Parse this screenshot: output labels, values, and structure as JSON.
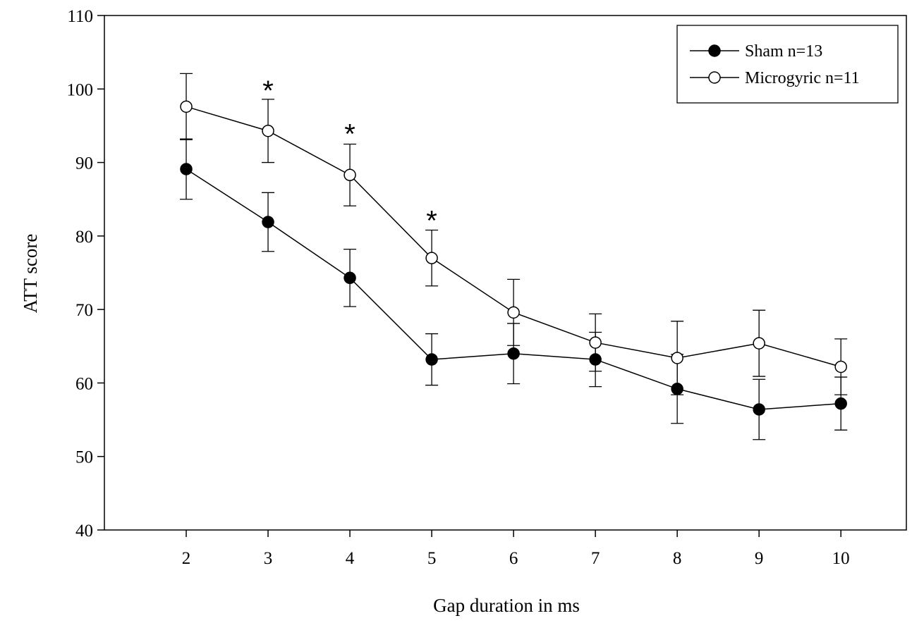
{
  "chart_data": {
    "type": "line",
    "xlabel": "Gap duration in ms",
    "ylabel": "ATT score",
    "xlim": [
      1.0,
      10.8
    ],
    "ylim": [
      40,
      110
    ],
    "x_ticks": [
      2,
      3,
      4,
      5,
      6,
      7,
      8,
      9,
      10
    ],
    "y_ticks": [
      40,
      50,
      60,
      70,
      80,
      90,
      100,
      110
    ],
    "grid": false,
    "legend_position": "top-right",
    "x": [
      2,
      3,
      4,
      5,
      6,
      7,
      8,
      9,
      10
    ],
    "series": [
      {
        "name": "Sham n=13",
        "marker": "filled-circle",
        "color": "#000000",
        "values": [
          89.1,
          81.9,
          74.3,
          63.2,
          64.0,
          63.2,
          59.2,
          56.4,
          57.2
        ],
        "errors": [
          4.1,
          4.0,
          3.9,
          3.5,
          4.1,
          3.7,
          4.7,
          4.1,
          3.6
        ]
      },
      {
        "name": "Microgyric n=11",
        "marker": "open-circle",
        "color": "#000000",
        "values": [
          97.6,
          94.3,
          88.3,
          77.0,
          69.6,
          65.5,
          63.4,
          65.4,
          62.2
        ],
        "errors": [
          4.5,
          4.3,
          4.2,
          3.8,
          4.5,
          3.9,
          5.0,
          4.5,
          3.8
        ]
      }
    ],
    "annotations": [
      {
        "text": "*",
        "x": 3,
        "y": 100.6
      },
      {
        "text": "*",
        "x": 4,
        "y": 94.7
      },
      {
        "text": "*",
        "x": 5,
        "y": 82.9
      }
    ]
  }
}
